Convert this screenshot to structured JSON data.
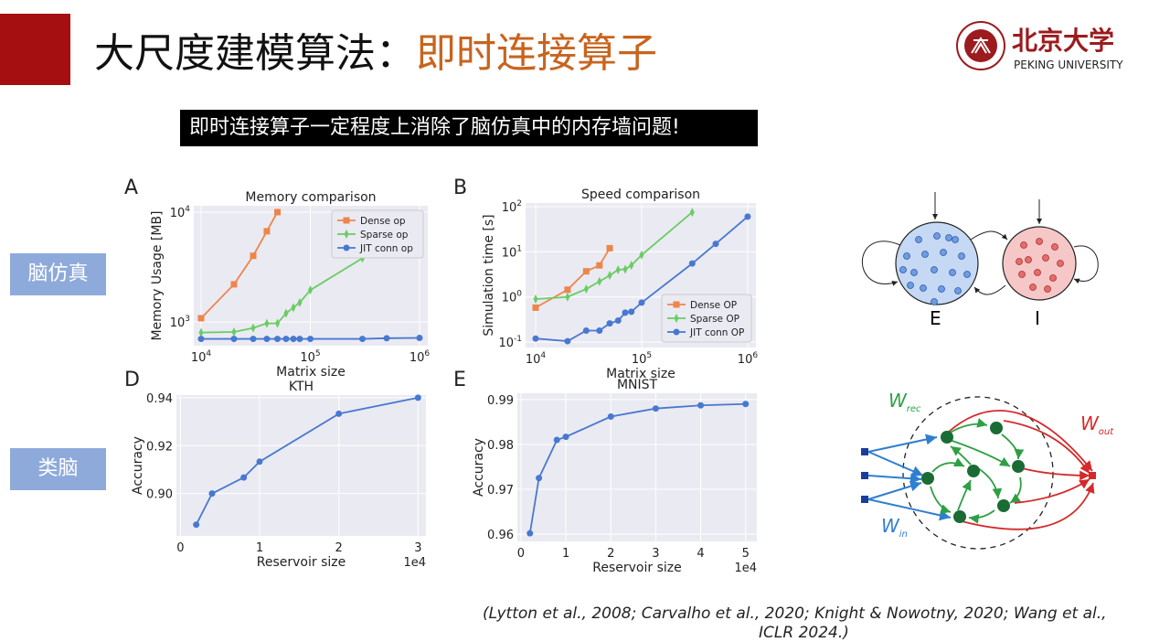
{
  "slide": {
    "title_main": "大尺度建模算法：",
    "title_highlight": "即时连接算子",
    "banner": "即时连接算子一定程度上消除了脑仿真中的内存墙问题!",
    "side_labels": [
      "脑仿真",
      "类脑"
    ],
    "panel_letters": [
      "A",
      "B",
      "D",
      "E"
    ],
    "citation_line1": "(Lytton et al., 2008; Carvalho et al., 2020; Knight & Nowotny, 2020; Wang et al.,",
    "citation_line2": "ICLR 2024.)",
    "logo": {
      "text_cn": "北京大学",
      "text_en": "PEKING UNIVERSITY",
      "color": "#9b1b1e"
    }
  },
  "diagrams": {
    "ei": {
      "e_label": "E",
      "i_label": "I",
      "e_color": "#c6d9f4",
      "i_color": "#f6c7c7"
    },
    "reservoir": {
      "w_rec": "W",
      "w_rec_sub": "rec",
      "w_out": "W",
      "w_out_sub": "out",
      "w_in": "W",
      "w_in_sub": "in"
    }
  },
  "chart_data": [
    {
      "type": "line",
      "title": "Memory comparison",
      "xlabel": "Matrix size",
      "ylabel": "Memory Usage [MB]",
      "xscale": "log",
      "yscale": "log",
      "xlim": [
        8570,
        1190000
      ],
      "ylim": [
        607,
        11430
      ],
      "xticks": [
        10000,
        100000,
        1000000
      ],
      "xtick_labels": [
        "10^4",
        "10^5",
        "10^6"
      ],
      "yticks": [
        1000,
        10000
      ],
      "ytick_labels": [
        "10^3",
        "10^4"
      ],
      "grid": true,
      "legend": "top-right",
      "series": [
        {
          "name": "Dense op",
          "color": "#ee854a",
          "marker": "square",
          "x": [
            10000,
            20000,
            30000,
            40000,
            50000
          ],
          "y": [
            1080,
            2200,
            4000,
            6700,
            10000
          ]
        },
        {
          "name": "Sparse op",
          "color": "#6acc64",
          "marker": "diamond",
          "x": [
            10000,
            20000,
            30000,
            40000,
            50000,
            60000,
            70000,
            80000,
            100000,
            300000
          ],
          "y": [
            800,
            810,
            880,
            970,
            970,
            1200,
            1350,
            1500,
            1950,
            3800
          ]
        },
        {
          "name": "JIT conn op",
          "color": "#4878d0",
          "marker": "circle",
          "x": [
            10000,
            20000,
            30000,
            40000,
            50000,
            60000,
            70000,
            80000,
            100000,
            300000,
            500000,
            1000000
          ],
          "y": [
            700,
            700,
            700,
            700,
            700,
            700,
            700,
            700,
            700,
            700,
            710,
            715
          ]
        }
      ]
    },
    {
      "type": "line",
      "title": "Speed comparison",
      "xlabel": "Matrix size",
      "ylabel": "Simulation time [s]",
      "xscale": "log",
      "yscale": "log",
      "xlim": [
        8040,
        1197000
      ],
      "ylim": [
        0.076,
        120
      ],
      "xticks": [
        10000,
        100000,
        1000000
      ],
      "xtick_labels": [
        "10^4",
        "10^5",
        "10^6"
      ],
      "yticks": [
        0.1,
        1,
        10,
        100
      ],
      "ytick_labels": [
        "10^-1",
        "10^0",
        "10^1",
        "10^2"
      ],
      "grid": true,
      "legend": "bottom-right",
      "series": [
        {
          "name": "Dense OP",
          "color": "#ee854a",
          "marker": "square",
          "x": [
            10000,
            20000,
            30000,
            40000,
            50000
          ],
          "y": [
            0.58,
            1.45,
            3.7,
            5.0,
            12
          ]
        },
        {
          "name": "Sparse OP",
          "color": "#6acc64",
          "marker": "diamond",
          "x": [
            10000,
            20000,
            30000,
            40000,
            50000,
            60000,
            70000,
            80000,
            100000,
            300000
          ],
          "y": [
            0.9,
            1.0,
            1.5,
            2.2,
            3.0,
            4.0,
            4.1,
            5.0,
            8.5,
            75
          ]
        },
        {
          "name": "JIT conn OP",
          "color": "#4878d0",
          "marker": "circle",
          "x": [
            10000,
            20000,
            30000,
            40000,
            50000,
            60000,
            70000,
            80000,
            100000,
            300000,
            500000,
            1000000
          ],
          "y": [
            0.12,
            0.105,
            0.18,
            0.18,
            0.26,
            0.3,
            0.45,
            0.47,
            0.75,
            5.5,
            15,
            60
          ]
        }
      ]
    },
    {
      "type": "line",
      "title": "KTH",
      "xlabel": "Reservoir size",
      "ylabel": "Accuracy",
      "x_offset_label": "1e4",
      "xscale": "linear",
      "yscale": "linear",
      "xlim": [
        -0.05,
        3.1
      ],
      "ylim": [
        0.8823,
        0.9411
      ],
      "xticks": [
        0,
        1,
        2,
        3
      ],
      "xtick_labels": [
        "0",
        "1",
        "2",
        "3"
      ],
      "yticks": [
        0.9,
        0.92,
        0.94
      ],
      "ytick_labels": [
        "0.90",
        "0.92",
        "0.94"
      ],
      "grid": true,
      "series": [
        {
          "color": "#4878d0",
          "marker": "circle",
          "x": [
            0.2,
            0.4,
            0.8,
            1,
            2,
            3
          ],
          "y": [
            0.887,
            0.9,
            0.9067,
            0.9133,
            0.9333,
            0.94
          ]
        }
      ]
    },
    {
      "type": "line",
      "title": "MNIST",
      "xlabel": "Reservoir size",
      "ylabel": "Accuracy",
      "x_offset_label": "1e4",
      "xscale": "linear",
      "yscale": "linear",
      "xlim": [
        -0.08,
        5.25
      ],
      "ylim": [
        0.9584,
        0.9914
      ],
      "xticks": [
        0,
        1,
        2,
        3,
        4,
        5
      ],
      "xtick_labels": [
        "0",
        "1",
        "2",
        "3",
        "4",
        "5"
      ],
      "yticks": [
        0.96,
        0.97,
        0.98,
        0.99
      ],
      "ytick_labels": [
        "0.96",
        "0.97",
        "0.98",
        "0.99"
      ],
      "grid": true,
      "series": [
        {
          "color": "#4878d0",
          "marker": "circle",
          "x": [
            0.2,
            0.4,
            0.8,
            1,
            2,
            3,
            4,
            5
          ],
          "y": [
            0.9602,
            0.9725,
            0.981,
            0.9817,
            0.9862,
            0.988,
            0.9887,
            0.989
          ]
        }
      ]
    }
  ]
}
